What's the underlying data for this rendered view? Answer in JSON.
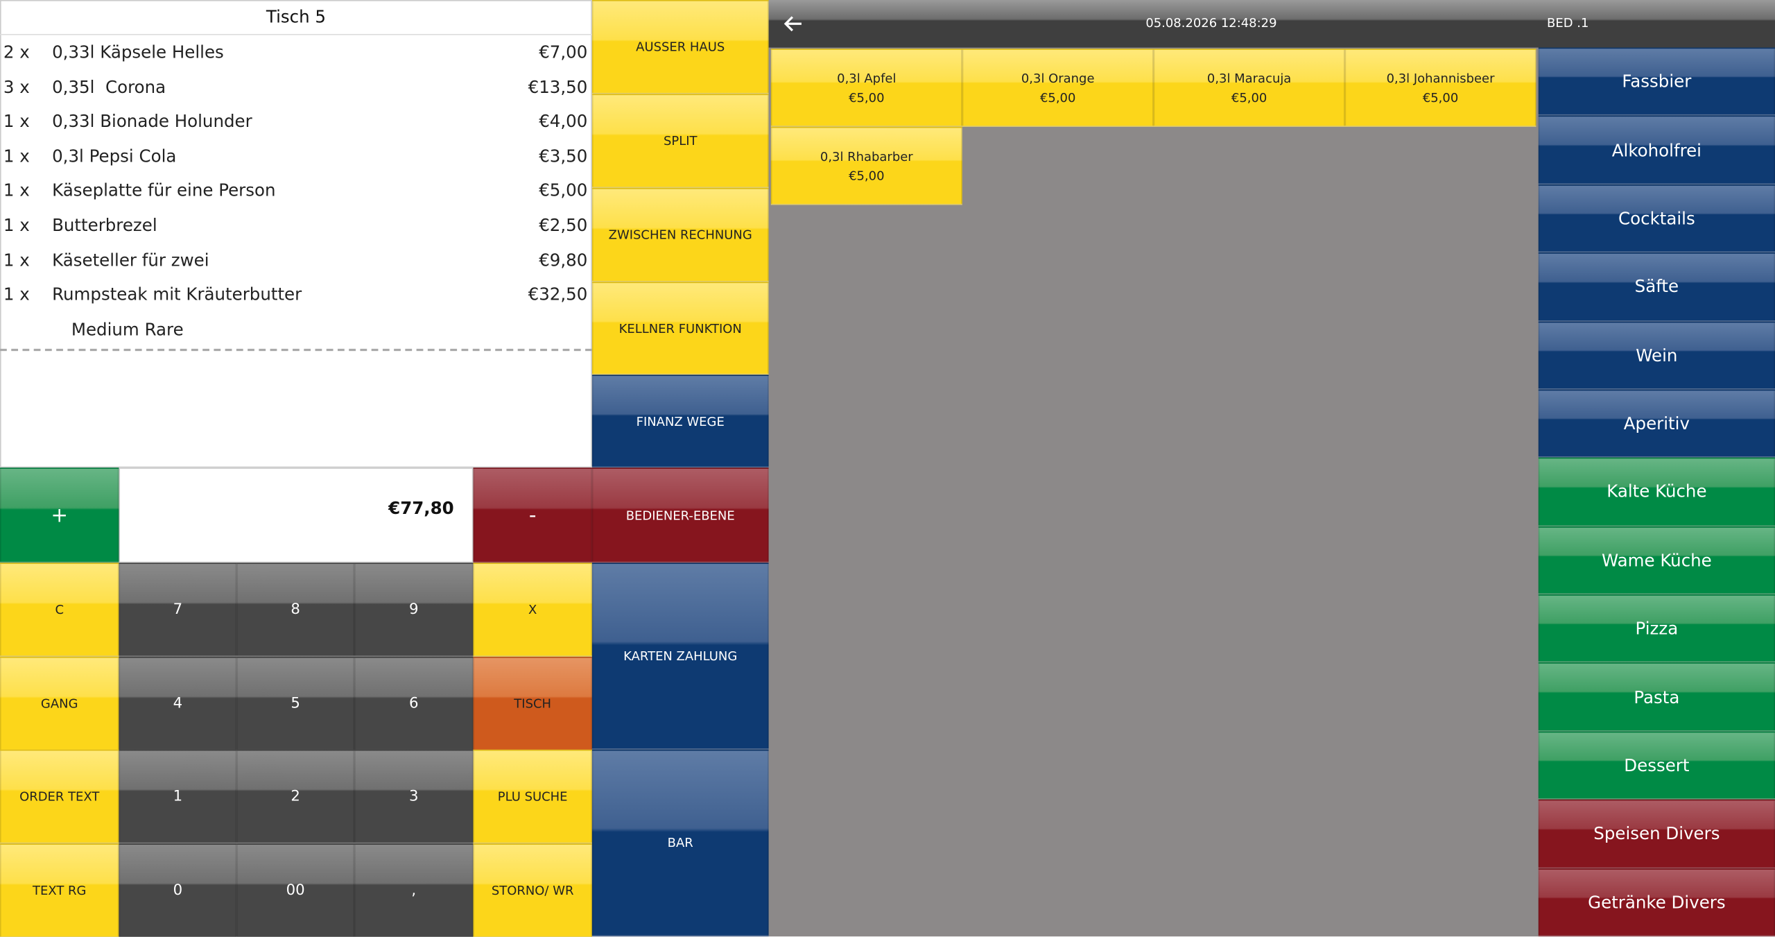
{
  "receipt": {
    "title": "Tisch 5",
    "items": [
      {
        "qty": "2 x",
        "name": "0,33l Käpsele Helles",
        "price": "€7,00"
      },
      {
        "qty": "3 x",
        "name": "0,35l  Corona",
        "price": "€13,50"
      },
      {
        "qty": "1 x",
        "name": "0,33l Bionade Holunder",
        "price": "€4,00"
      },
      {
        "qty": "1 x",
        "name": "0,3l Pepsi Cola",
        "price": "€3,50"
      },
      {
        "qty": "1 x",
        "name": "Käseplatte für eine Person",
        "price": "€5,00"
      },
      {
        "qty": "1 x",
        "name": "Butterbrezel",
        "price": "€2,50"
      },
      {
        "qty": "1 x",
        "name": "Käseteller für zwei",
        "price": "€9,80"
      },
      {
        "qty": "1 x",
        "name": "Rumpsteak mit Kräuterbutter",
        "price": "€32,50",
        "note": "Medium Rare"
      }
    ]
  },
  "total": "€77,80",
  "plus": "+",
  "minus": "-",
  "keys": [
    [
      "C",
      "7",
      "8",
      "9",
      "X"
    ],
    [
      "GANG",
      "4",
      "5",
      "6",
      "TISCH"
    ],
    [
      "ORDER TEXT",
      "1",
      "2",
      "3",
      "PLU SUCHE"
    ],
    [
      "TEXT RG",
      "0",
      "00",
      ",",
      "STORNO/ WR"
    ]
  ],
  "functions": [
    "AUSSER HAUS",
    "SPLIT",
    "ZWISCHEN RECHNUNG",
    "KELLNER FUNKTION",
    "FINANZ WEGE",
    "BEDIENER-EBENE",
    "KARTEN ZAHLUNG",
    "BAR"
  ],
  "header": {
    "datetime": "05.08.2026 12:48:29",
    "user": "BED .1"
  },
  "products": [
    {
      "name": "0,3l Apfel",
      "price": "€5,00"
    },
    {
      "name": "0,3l Orange",
      "price": "€5,00"
    },
    {
      "name": "0,3l Maracuja",
      "price": "€5,00"
    },
    {
      "name": "0,3l Johannisbeer",
      "price": "€5,00"
    },
    {
      "name": "0,3l Rhabarber",
      "price": "€5,00"
    }
  ],
  "categories": [
    "Fassbier",
    "Alkoholfrei",
    "Cocktails",
    "Säfte",
    "Wein",
    "Aperitiv",
    "Kalte Küche",
    "Wame Küche",
    "Pizza",
    "Pasta",
    "Dessert",
    "Speisen Divers",
    "Getränke Divers"
  ]
}
